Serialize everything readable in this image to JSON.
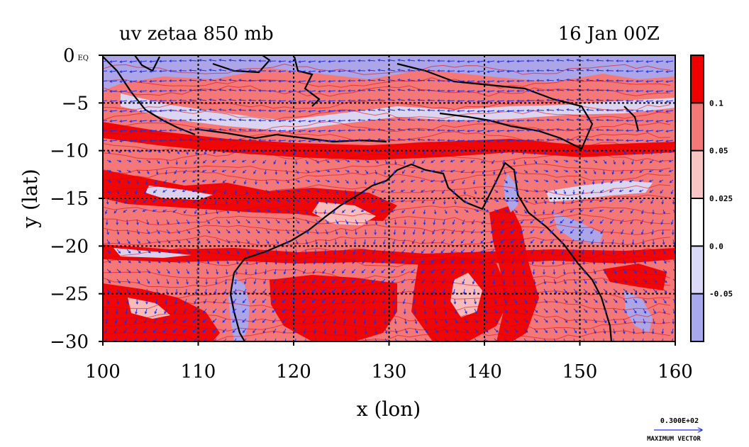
{
  "chart_data": {
    "type": "heatmap",
    "title": "uv zetaa 850 mb",
    "subtitle": "16 Jan 00Z",
    "xlabel": "x (lon)",
    "ylabel": "y (lat)",
    "xlim": [
      100,
      160
    ],
    "ylim": [
      -30,
      0
    ],
    "x_ticks": [
      100,
      110,
      120,
      130,
      140,
      150,
      160
    ],
    "y_ticks": [
      0,
      -5,
      -10,
      -15,
      -20,
      -25,
      -30
    ],
    "y_tick_labels": [
      "0 EQ",
      "−5",
      "−10",
      "−15",
      "−20",
      "−25",
      "−30"
    ],
    "grid": true,
    "legend": {
      "placement": "right",
      "levels": [
        "0.1",
        "0.05",
        "0.025",
        "0.0",
        "-0.05"
      ],
      "colors": [
        "#ee0000",
        "#f47878",
        "#f9c4c4",
        "#ffffff",
        "#dadaf8",
        "#a8a8ee"
      ]
    },
    "vector_legend": {
      "value": "0.300E+02",
      "label": "MAXIMUM VECTOR"
    },
    "colors": {
      "strong_positive": "#ee0000",
      "positive": "#f47878",
      "weak_positive": "#f9c4c4",
      "weak_negative": "#dadaf8",
      "negative": "#a8a8ee",
      "vector": "#1e2ee0",
      "coast": "#000000"
    }
  }
}
